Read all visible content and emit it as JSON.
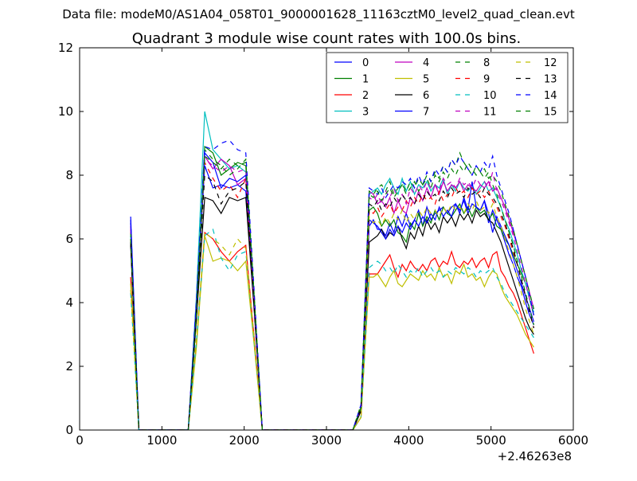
{
  "chart_data": {
    "type": "line",
    "suptitle": "Data file: modeM0/AS1A04_058T01_9000001628_11163cztM0_level2_quad_clean.evt",
    "title": "Quadrant 3 module wise count rates with 100.0s bins.",
    "xlabel": "",
    "ylabel": "",
    "x_offset_label": "+2.46263e8",
    "xlim": [
      0,
      6000
    ],
    "ylim": [
      0,
      12
    ],
    "xticks": [
      0,
      1000,
      2000,
      3000,
      4000,
      5000,
      6000
    ],
    "yticks": [
      0,
      2,
      4,
      6,
      8,
      10,
      12
    ],
    "grid": false,
    "legend": {
      "location": "upper-right",
      "columns": 4
    },
    "x": [
      620,
      720,
      820,
      920,
      1020,
      1120,
      1220,
      1320,
      1420,
      1520,
      1620,
      1720,
      1820,
      1920,
      2020,
      2120,
      2220,
      2320,
      2420,
      2520,
      2620,
      2720,
      2820,
      2920,
      3020,
      3120,
      3220,
      3320,
      3420,
      3520,
      3570,
      3620,
      3670,
      3720,
      3770,
      3820,
      3870,
      3920,
      3970,
      4020,
      4070,
      4120,
      4170,
      4220,
      4270,
      4320,
      4370,
      4420,
      4470,
      4520,
      4570,
      4620,
      4670,
      4720,
      4770,
      4820,
      4870,
      4920,
      4970,
      5020,
      5070,
      5120,
      5170,
      5220,
      5270,
      5320,
      5370,
      5420,
      5470,
      5520
    ],
    "series": [
      {
        "name": "0",
        "color": "#0000ff",
        "dash": "solid",
        "values": [
          6.7,
          0,
          0,
          0,
          0,
          0,
          0,
          0,
          3.8,
          8.3,
          7.6,
          7.7,
          7.6,
          7.7,
          7.5,
          3.9,
          0,
          0,
          0,
          0,
          0,
          0,
          0,
          0,
          0,
          0,
          0,
          0,
          0.7,
          6.4,
          6.6,
          6.3,
          6.3,
          6.1,
          6.5,
          6.2,
          6.7,
          6.4,
          6.8,
          6.4,
          6.6,
          6.9,
          6.4,
          7.0,
          6.6,
          6.8,
          6.9,
          7.0,
          6.8,
          7.0,
          7.1,
          6.9,
          7.2,
          6.8,
          7.1,
          7.0,
          6.9,
          7.2,
          6.5,
          6.9,
          6.6,
          6.3,
          5.9,
          5.5,
          5.2,
          4.8,
          4.5,
          4.0,
          3.6,
          3.3
        ]
      },
      {
        "name": "1",
        "color": "#008000",
        "dash": "solid",
        "values": [
          5.9,
          0,
          0,
          0,
          0,
          0,
          0,
          0,
          3.5,
          8.9,
          8.7,
          8.0,
          8.2,
          8.4,
          8.3,
          4.2,
          0,
          0,
          0,
          0,
          0,
          0,
          0,
          0,
          0,
          0,
          0,
          0,
          0.6,
          6.9,
          7.0,
          6.8,
          6.4,
          6.6,
          6.4,
          6.6,
          6.2,
          6.1,
          5.9,
          6.5,
          6.3,
          6.8,
          6.4,
          6.7,
          6.5,
          6.9,
          6.6,
          7.0,
          6.8,
          6.7,
          6.9,
          7.1,
          6.8,
          7.0,
          6.7,
          7.0,
          6.8,
          6.9,
          6.6,
          6.8,
          6.4,
          6.3,
          6.0,
          5.8,
          5.5,
          5.2,
          4.9,
          4.6,
          4.1,
          3.6
        ]
      },
      {
        "name": "2",
        "color": "#ff0000",
        "dash": "solid",
        "values": [
          4.8,
          0,
          0,
          0,
          0,
          0,
          0,
          0,
          2.7,
          6.2,
          6.0,
          5.6,
          5.3,
          5.6,
          5.8,
          2.9,
          0,
          0,
          0,
          0,
          0,
          0,
          0,
          0,
          0,
          0,
          0,
          0,
          0.4,
          4.9,
          4.9,
          4.9,
          5.1,
          5.3,
          5.5,
          5.1,
          4.8,
          5.2,
          5.0,
          5.3,
          5.1,
          5.0,
          5.2,
          5.0,
          5.3,
          5.4,
          5.1,
          5.3,
          5.2,
          5.6,
          5.2,
          5.1,
          5.3,
          5.2,
          5.4,
          5.1,
          5.3,
          5.4,
          5.1,
          5.5,
          5.6,
          5.0,
          4.8,
          4.5,
          4.3,
          4.0,
          3.6,
          3.2,
          2.8,
          2.4
        ]
      },
      {
        "name": "3",
        "color": "#00bfbf",
        "dash": "solid",
        "values": [
          6.1,
          0,
          0,
          0,
          0,
          0,
          0,
          0,
          4.2,
          10.0,
          8.8,
          8.5,
          8.2,
          8.3,
          8.1,
          4.1,
          0,
          0,
          0,
          0,
          0,
          0,
          0,
          0,
          0,
          0,
          0,
          0,
          0.7,
          7.4,
          7.5,
          7.6,
          7.4,
          7.7,
          7.9,
          7.6,
          7.4,
          7.9,
          7.5,
          7.8,
          7.4,
          7.7,
          7.6,
          7.8,
          7.5,
          7.7,
          7.6,
          7.9,
          7.4,
          7.7,
          7.5,
          7.8,
          7.6,
          7.5,
          7.7,
          7.4,
          7.6,
          7.8,
          7.5,
          7.6,
          7.3,
          7.0,
          6.6,
          6.3,
          5.9,
          5.5,
          5.0,
          4.6,
          4.1,
          3.7
        ]
      },
      {
        "name": "4",
        "color": "#bf00bf",
        "dash": "solid",
        "values": [
          6.4,
          0,
          0,
          0,
          0,
          0,
          0,
          0,
          4.0,
          8.6,
          8.2,
          8.5,
          8.3,
          7.7,
          7.9,
          4.0,
          0,
          0,
          0,
          0,
          0,
          0,
          0,
          0,
          0,
          0,
          0,
          0,
          0.7,
          7.5,
          7.4,
          7.1,
          7.2,
          7.0,
          7.3,
          6.8,
          7.2,
          6.9,
          6.8,
          7.3,
          7.1,
          7.5,
          7.2,
          7.6,
          7.3,
          7.7,
          7.4,
          7.8,
          7.5,
          7.7,
          7.6,
          7.8,
          7.5,
          7.7,
          7.6,
          7.5,
          7.7,
          7.6,
          7.8,
          7.5,
          7.6,
          7.3,
          7.0,
          6.6,
          6.2,
          5.8,
          5.3,
          4.8,
          4.3,
          3.8
        ]
      },
      {
        "name": "5",
        "color": "#bfbf00",
        "dash": "solid",
        "values": [
          4.6,
          0,
          0,
          0,
          0,
          0,
          0,
          0,
          2.6,
          6.1,
          5.3,
          5.4,
          5.3,
          5.0,
          5.3,
          2.7,
          0,
          0,
          0,
          0,
          0,
          0,
          0,
          0,
          0,
          0,
          0,
          0,
          0.4,
          4.8,
          4.8,
          4.9,
          4.7,
          4.5,
          4.8,
          5.0,
          4.6,
          4.5,
          4.7,
          4.9,
          4.8,
          4.7,
          5.0,
          4.8,
          4.9,
          4.7,
          5.1,
          4.8,
          4.9,
          4.6,
          5.0,
          4.9,
          5.2,
          4.8,
          4.9,
          4.7,
          4.8,
          4.5,
          4.8,
          5.0,
          4.9,
          4.5,
          4.2,
          4.0,
          3.8,
          3.6,
          3.3,
          3.0,
          2.8,
          2.6
        ]
      },
      {
        "name": "6",
        "color": "#000000",
        "dash": "solid",
        "values": [
          5.8,
          0,
          0,
          0,
          0,
          0,
          0,
          0,
          3.5,
          7.3,
          7.2,
          6.8,
          7.3,
          7.2,
          7.3,
          3.8,
          0,
          0,
          0,
          0,
          0,
          0,
          0,
          0,
          0,
          0,
          0,
          0,
          0.6,
          5.9,
          6.0,
          6.1,
          6.3,
          6.0,
          6.2,
          6.1,
          6.4,
          6.0,
          5.7,
          6.2,
          6.0,
          6.4,
          6.1,
          6.6,
          6.3,
          6.5,
          6.2,
          6.7,
          6.5,
          6.7,
          6.4,
          6.8,
          6.6,
          6.8,
          6.5,
          6.9,
          6.7,
          6.8,
          6.6,
          6.5,
          6.2,
          5.9,
          5.5,
          5.1,
          4.7,
          4.3,
          3.9,
          3.5,
          3.2,
          3.0
        ]
      },
      {
        "name": "7",
        "color": "#0000ff",
        "dash": "solid",
        "values": [
          6.5,
          0,
          0,
          0,
          0,
          0,
          0,
          0,
          3.9,
          8.7,
          8.4,
          7.6,
          7.9,
          7.8,
          8.0,
          4.0,
          0,
          0,
          0,
          0,
          0,
          0,
          0,
          0,
          0,
          0,
          0,
          0,
          0.7,
          6.6,
          6.5,
          6.4,
          6.2,
          6.0,
          6.3,
          6.1,
          6.4,
          6.2,
          6.5,
          6.3,
          6.6,
          6.4,
          6.7,
          6.5,
          6.8,
          6.6,
          7.0,
          6.7,
          6.9,
          6.7,
          7.1,
          6.8,
          7.3,
          6.9,
          7.8,
          7.0,
          6.9,
          7.2,
          6.8,
          6.2,
          6.7,
          6.4,
          6.1,
          5.8,
          5.4,
          5.0,
          4.6,
          4.2,
          3.8,
          3.4
        ]
      },
      {
        "name": "8",
        "color": "#008000",
        "dash": "dashed",
        "values": [
          6.2,
          0,
          0,
          0,
          0,
          0,
          0,
          0,
          3.8,
          8.8,
          8.5,
          8.3,
          8.0,
          8.2,
          8.5,
          4.3,
          0,
          0,
          0,
          0,
          0,
          0,
          0,
          0,
          0,
          0,
          0,
          0,
          0.8,
          7.5,
          7.4,
          7.6,
          7.7,
          7.5,
          7.8,
          7.4,
          7.6,
          7.7,
          7.5,
          7.8,
          7.6,
          7.9,
          7.7,
          8.0,
          7.8,
          8.1,
          7.9,
          8.3,
          8.1,
          8.5,
          8.3,
          8.7,
          8.4,
          8.2,
          8.0,
          8.3,
          8.1,
          8.2,
          7.9,
          8.0,
          7.8,
          7.5,
          7.1,
          6.7,
          6.3,
          5.8,
          5.3,
          4.8,
          4.3,
          3.8
        ]
      },
      {
        "name": "9",
        "color": "#ff0000",
        "dash": "dashed",
        "values": [
          6.0,
          0,
          0,
          0,
          0,
          0,
          0,
          0,
          3.7,
          8.4,
          7.9,
          7.5,
          7.7,
          7.3,
          7.9,
          4.0,
          0,
          0,
          0,
          0,
          0,
          0,
          0,
          0,
          0,
          0,
          0,
          0,
          0.7,
          6.9,
          6.8,
          7.0,
          6.7,
          6.9,
          7.1,
          6.8,
          7.0,
          6.9,
          7.2,
          7.0,
          7.3,
          7.1,
          7.4,
          7.2,
          7.3,
          7.1,
          7.5,
          7.2,
          7.4,
          7.3,
          7.6,
          7.4,
          7.5,
          7.3,
          7.6,
          7.4,
          7.5,
          7.3,
          7.5,
          7.2,
          7.0,
          6.7,
          6.4,
          6.0,
          5.6,
          5.2,
          4.7,
          4.2,
          3.7,
          3.2
        ]
      },
      {
        "name": "10",
        "color": "#00bfbf",
        "dash": "dashed",
        "values": [
          4.3,
          0,
          0,
          0,
          0,
          0,
          0,
          0,
          2.8,
          6.1,
          6.3,
          5.4,
          5.0,
          5.5,
          5.6,
          2.8,
          0,
          0,
          0,
          0,
          0,
          0,
          0,
          0,
          0,
          0,
          0,
          0,
          0.4,
          5.1,
          5.2,
          5.3,
          5.2,
          5.0,
          5.1,
          4.9,
          5.2,
          5.0,
          4.8,
          5.0,
          4.9,
          5.1,
          4.8,
          5.0,
          5.1,
          4.9,
          5.0,
          4.8,
          5.0,
          4.9,
          5.1,
          5.0,
          4.9,
          5.1,
          5.0,
          4.8,
          5.0,
          4.9,
          5.0,
          5.1,
          4.8,
          4.6,
          4.3,
          4.1,
          3.9,
          3.7,
          3.5,
          3.3,
          3.1,
          2.9
        ]
      },
      {
        "name": "11",
        "color": "#bf00bf",
        "dash": "dashed",
        "values": [
          6.3,
          0,
          0,
          0,
          0,
          0,
          0,
          0,
          3.9,
          8.5,
          8.3,
          8.1,
          8.3,
          8.1,
          8.2,
          4.1,
          0,
          0,
          0,
          0,
          0,
          0,
          0,
          0,
          0,
          0,
          0,
          0,
          0.7,
          7.3,
          7.2,
          7.4,
          7.1,
          7.5,
          7.3,
          7.6,
          7.2,
          7.4,
          7.1,
          7.6,
          7.4,
          7.7,
          7.5,
          7.8,
          7.6,
          7.7,
          7.5,
          7.9,
          7.7,
          7.8,
          7.6,
          7.9,
          7.7,
          7.8,
          7.6,
          7.9,
          7.7,
          7.8,
          7.6,
          8.1,
          7.5,
          7.2,
          6.9,
          6.5,
          6.1,
          5.6,
          5.1,
          4.6,
          4.1,
          3.6
        ]
      },
      {
        "name": "12",
        "color": "#bfbf00",
        "dash": "dashed",
        "values": [
          4.4,
          0,
          0,
          0,
          0,
          0,
          0,
          0,
          2.9,
          6.2,
          6.0,
          5.8,
          5.5,
          6.0,
          5.7,
          2.9,
          0,
          0,
          0,
          0,
          0,
          0,
          0,
          0,
          0,
          0,
          0,
          0,
          0.4,
          6.7,
          6.5,
          6.6,
          6.4,
          6.7,
          6.5,
          6.8,
          6.6,
          6.9,
          6.5,
          6.8,
          6.6,
          6.9,
          6.7,
          7.0,
          6.8,
          6.9,
          6.7,
          7.0,
          6.8,
          7.1,
          6.9,
          7.0,
          6.8,
          7.1,
          6.9,
          7.2,
          6.9,
          7.0,
          6.8,
          7.1,
          6.7,
          6.4,
          6.0,
          5.6,
          5.2,
          4.8,
          4.3,
          3.8,
          3.4,
          3.0
        ]
      },
      {
        "name": "13",
        "color": "#000000",
        "dash": "dashed",
        "values": [
          5.9,
          0,
          0,
          0,
          0,
          0,
          0,
          0,
          3.6,
          8.0,
          7.8,
          7.1,
          7.5,
          7.6,
          7.8,
          3.9,
          0,
          0,
          0,
          0,
          0,
          0,
          0,
          0,
          0,
          0,
          0,
          0,
          0.7,
          7.1,
          7.0,
          7.2,
          6.9,
          7.1,
          7.0,
          7.3,
          7.1,
          7.4,
          7.2,
          7.3,
          7.1,
          7.4,
          7.2,
          7.5,
          7.3,
          7.4,
          7.2,
          7.5,
          7.3,
          7.6,
          7.4,
          7.5,
          7.3,
          7.6,
          7.4,
          7.5,
          7.3,
          7.6,
          7.4,
          7.3,
          7.1,
          6.8,
          6.5,
          6.1,
          5.7,
          5.2,
          4.7,
          4.2,
          3.7,
          3.2
        ]
      },
      {
        "name": "14",
        "color": "#0000ff",
        "dash": "dashed",
        "values": [
          6.6,
          0,
          0,
          0,
          0,
          0,
          0,
          0,
          4.1,
          8.9,
          8.8,
          9.0,
          9.1,
          8.8,
          8.7,
          4.4,
          0,
          0,
          0,
          0,
          0,
          0,
          0,
          0,
          0,
          0,
          0,
          0,
          0.8,
          7.6,
          7.5,
          7.4,
          7.6,
          7.3,
          7.5,
          7.7,
          7.6,
          7.8,
          7.7,
          7.9,
          7.6,
          8.0,
          7.7,
          8.1,
          7.8,
          8.2,
          8.0,
          8.3,
          8.1,
          8.5,
          8.3,
          8.6,
          8.4,
          8.2,
          8.0,
          8.3,
          8.1,
          8.4,
          8.2,
          8.6,
          8.0,
          7.6,
          7.2,
          6.8,
          6.3,
          5.8,
          5.3,
          4.8,
          4.2,
          3.6
        ]
      },
      {
        "name": "15",
        "color": "#008000",
        "dash": "dashed",
        "values": [
          6.0,
          0,
          0,
          0,
          0,
          0,
          0,
          0,
          3.7,
          8.6,
          8.4,
          8.2,
          8.5,
          8.3,
          8.4,
          4.2,
          0,
          0,
          0,
          0,
          0,
          0,
          0,
          0,
          0,
          0,
          0,
          0,
          0.7,
          7.4,
          7.3,
          7.5,
          7.2,
          7.4,
          7.6,
          7.3,
          7.5,
          7.7,
          7.4,
          7.6,
          7.8,
          7.5,
          7.7,
          7.9,
          7.6,
          8.0,
          7.8,
          8.1,
          7.9,
          8.2,
          8.0,
          8.3,
          8.1,
          8.4,
          8.2,
          8.0,
          8.1,
          7.9,
          8.1,
          7.7,
          7.4,
          7.0,
          6.6,
          6.2,
          5.8,
          5.3,
          4.8,
          4.3,
          3.8,
          3.3
        ]
      }
    ]
  }
}
